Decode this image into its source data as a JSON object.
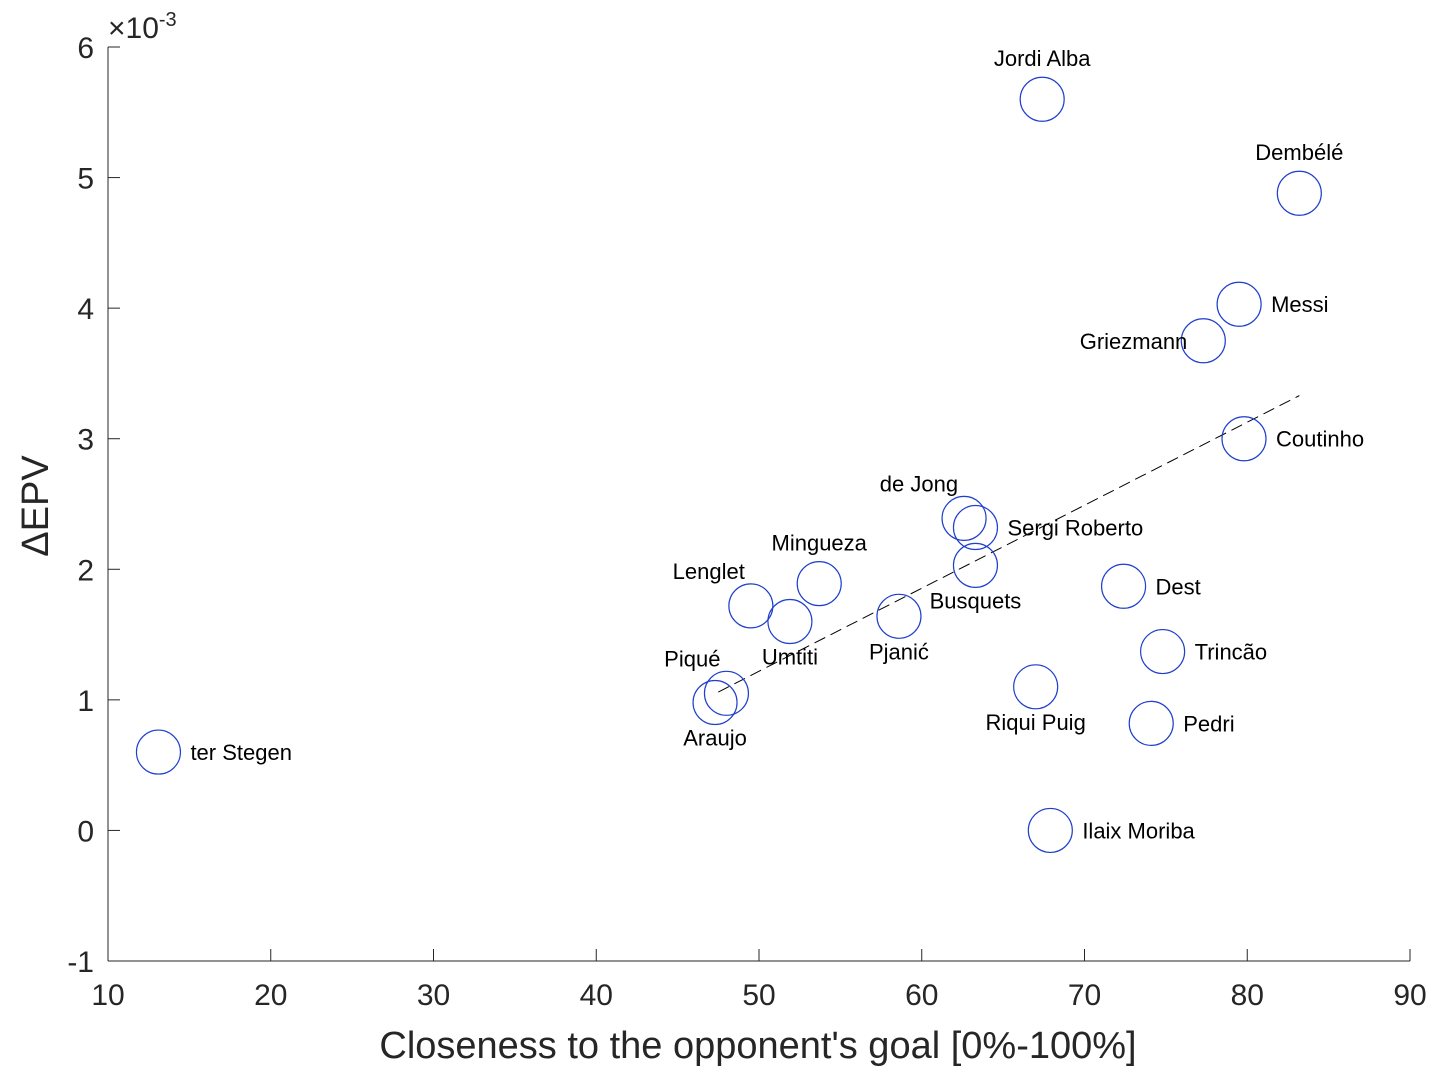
{
  "chart_data": {
    "type": "scatter",
    "xlabel": "Closeness to the opponent's goal [0%-100%]",
    "ylabel": "ΔEPV",
    "y_exponent_prefix": "×10",
    "y_exponent_power": "-3",
    "xlim": [
      10,
      90
    ],
    "ylim": [
      -1,
      6
    ],
    "xticks": [
      "10",
      "20",
      "30",
      "40",
      "50",
      "60",
      "70",
      "80",
      "90"
    ],
    "yticks": [
      "-1",
      "0",
      "1",
      "2",
      "3",
      "4",
      "5",
      "6"
    ],
    "grid": false,
    "marker_color": "#1f3fcc",
    "trend_line": {
      "style": "dashed",
      "x": [
        47.5,
        83.2
      ],
      "y": [
        1.06,
        3.33
      ]
    },
    "points": [
      {
        "label": "Jordi Alba",
        "x": 67.4,
        "y": 5.6,
        "label_pos": "above"
      },
      {
        "label": "Dembélé",
        "x": 83.2,
        "y": 4.88,
        "label_pos": "above"
      },
      {
        "label": "Messi",
        "x": 79.5,
        "y": 4.03,
        "label_pos": "right"
      },
      {
        "label": "Griezmann",
        "x": 77.3,
        "y": 3.75,
        "label_pos": "left"
      },
      {
        "label": "Coutinho",
        "x": 79.8,
        "y": 3.0,
        "label_pos": "right"
      },
      {
        "label": "de Jong",
        "x": 62.6,
        "y": 2.39,
        "label_pos": "above-left"
      },
      {
        "label": "Sergi Roberto",
        "x": 63.3,
        "y": 2.32,
        "label_pos": "right"
      },
      {
        "label": "Busquets",
        "x": 63.3,
        "y": 2.03,
        "label_pos": "below"
      },
      {
        "label": "Mingueza",
        "x": 53.7,
        "y": 1.89,
        "label_pos": "above"
      },
      {
        "label": "Lenglet",
        "x": 49.5,
        "y": 1.72,
        "label_pos": "above-left"
      },
      {
        "label": "Umtiti",
        "x": 51.9,
        "y": 1.6,
        "label_pos": "below"
      },
      {
        "label": "Pjanić",
        "x": 58.6,
        "y": 1.64,
        "label_pos": "below"
      },
      {
        "label": "Dest",
        "x": 72.4,
        "y": 1.87,
        "label_pos": "right"
      },
      {
        "label": "Trincão",
        "x": 74.8,
        "y": 1.37,
        "label_pos": "right"
      },
      {
        "label": "Piqué",
        "x": 48.0,
        "y": 1.05,
        "label_pos": "above-left"
      },
      {
        "label": "Araujo",
        "x": 47.3,
        "y": 0.98,
        "label_pos": "below"
      },
      {
        "label": "Riqui Puig",
        "x": 67.0,
        "y": 1.1,
        "label_pos": "below"
      },
      {
        "label": "Pedri",
        "x": 74.1,
        "y": 0.82,
        "label_pos": "right"
      },
      {
        "label": "ter Stegen",
        "x": 13.1,
        "y": 0.6,
        "label_pos": "right"
      },
      {
        "label": "Ilaix Moriba",
        "x": 67.9,
        "y": 0.0,
        "label_pos": "right"
      }
    ]
  }
}
